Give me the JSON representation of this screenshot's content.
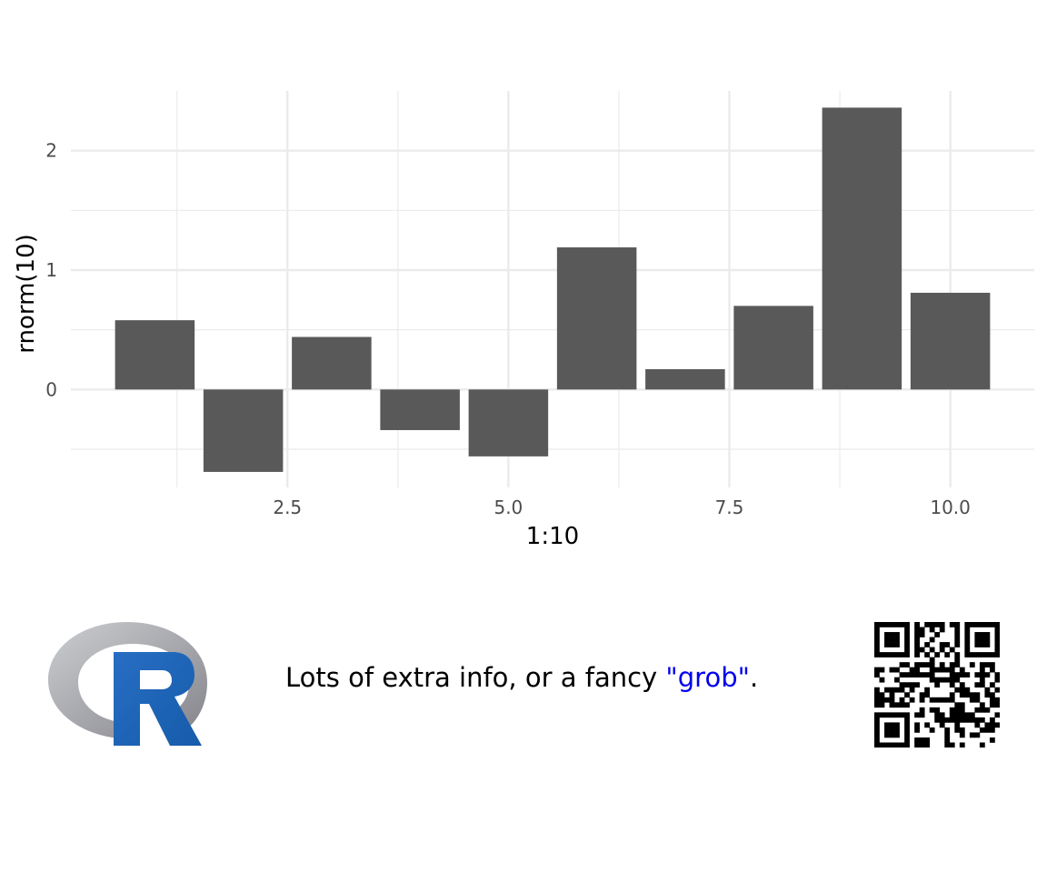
{
  "chart_data": {
    "type": "bar",
    "x": [
      1,
      2,
      3,
      4,
      5,
      6,
      7,
      8,
      9,
      10
    ],
    "values": [
      0.58,
      -0.69,
      0.44,
      -0.34,
      -0.56,
      1.19,
      0.17,
      0.7,
      2.36,
      0.81
    ],
    "xlabel": "1:10",
    "ylabel": "rnorm(10)",
    "xticks": [
      "2.5",
      "5.0",
      "7.5",
      "10.0"
    ],
    "xtick_values": [
      2.5,
      5.0,
      7.5,
      10.0
    ],
    "yticks": [
      "0",
      "1",
      "2"
    ],
    "ytick_values": [
      0,
      1,
      2
    ],
    "xlim": [
      0.05,
      10.95
    ],
    "ylim": [
      -0.82,
      2.5
    ],
    "grid": true,
    "bar_color": "#595959",
    "grid_color": "#ebebeb"
  },
  "footer": {
    "text_before": "Lots of extra info, or a fancy ",
    "text_highlight": "\"grob\"",
    "text_after": ".",
    "highlight_color": "#0000ee",
    "logo_icon": "r-logo-icon",
    "qr_icon": "qr-code-icon"
  }
}
